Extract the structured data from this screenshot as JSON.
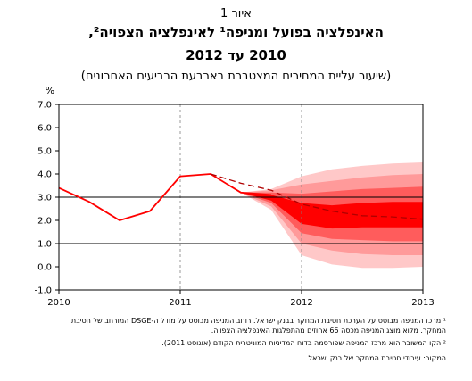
{
  "figure_label": "איור 1",
  "title_line1": "האינפלציה בפועל ומניפה¹ לאינפלציה הצפויה²,",
  "title_line2": "2010 עד 2012",
  "subtitle": "(שיעור עליית המחירים המצטברת בארבעת הרביעים האחרונים)",
  "notes": {
    "note1": "¹ מרכז המניפה מבוסס על הערכת חטיבת המחקר בבנק ישראל. רוחב המניפה מבוסס על מודל ה-DSGE המורחב של חטיבת המחקר. מלוא מוצג המניפה מכסה 66 אחוזים מהתפלגות האינפלציה הצפויה.",
    "note2": "² הקו המשובר הוא מרכז המניפה שפורסמה בדוח המדיניות המוניטרית הקודם (אוגוסט 2011).",
    "note3": "המקור: עיבודי חטיבת המחקר של בנק ישראל."
  },
  "colors": {
    "line": "#ff0000",
    "band_outer": "#ffc8c8",
    "band_mid2": "#ff9a9a",
    "band_mid1": "#ff5c5c",
    "band_inner": "#ff0000"
  },
  "chart_data": {
    "type": "line",
    "title": "האינפלציה בפועל ומניפה לאינפלציה הצפויה, 2010 עד 2012",
    "ylabel": "%",
    "xlabel": "",
    "xlim": [
      2010,
      2013
    ],
    "ylim": [
      -1.0,
      7.0
    ],
    "y_ticks": [
      "-1.0",
      "0.0",
      "1.0",
      "2.0",
      "3.0",
      "4.0",
      "5.0",
      "6.0",
      "7.0"
    ],
    "x_ticks": [
      "2010",
      "2011",
      "2012",
      "2013"
    ],
    "reference_lines": [
      1.0,
      3.0
    ],
    "grid": "dashed vertical at years",
    "series": [
      {
        "style": "solid",
        "x": [
          2010.0,
          2010.25,
          2010.5,
          2010.75,
          2011.0,
          2011.25,
          2011.5,
          2011.75
        ],
        "y": [
          3.4,
          2.8,
          2.0,
          2.4,
          3.9,
          4.0,
          3.2,
          3.1
        ]
      },
      {
        "style": "dashed",
        "x": [
          2011.25,
          2011.5,
          2011.75,
          2012.0,
          2012.25,
          2012.5,
          2012.75,
          2013.0
        ],
        "y": [
          4.0,
          3.6,
          3.3,
          2.7,
          2.4,
          2.2,
          2.15,
          2.05
        ]
      }
    ],
    "fan": {
      "x": [
        2011.5,
        2011.75,
        2012.0,
        2012.25,
        2012.5,
        2012.75,
        2013.0
      ],
      "center": [
        3.2,
        3.0,
        2.3,
        2.15,
        2.25,
        2.3,
        2.3
      ],
      "bands": [
        {
          "lower": [
            3.2,
            2.45,
            0.5,
            0.1,
            -0.05,
            -0.05,
            0.0
          ],
          "upper": [
            3.2,
            3.35,
            3.9,
            4.2,
            4.35,
            4.45,
            4.5
          ]
        },
        {
          "lower": [
            3.2,
            2.6,
            1.0,
            0.7,
            0.55,
            0.5,
            0.5
          ],
          "upper": [
            3.2,
            3.3,
            3.55,
            3.7,
            3.85,
            3.95,
            4.0
          ]
        },
        {
          "lower": [
            3.2,
            2.75,
            1.45,
            1.2,
            1.15,
            1.1,
            1.1
          ],
          "upper": [
            3.2,
            3.2,
            3.15,
            3.25,
            3.35,
            3.4,
            3.45
          ]
        },
        {
          "lower": [
            3.2,
            2.85,
            1.85,
            1.65,
            1.7,
            1.7,
            1.7
          ],
          "upper": [
            3.2,
            3.1,
            2.75,
            2.65,
            2.75,
            2.8,
            2.8
          ]
        }
      ]
    }
  }
}
